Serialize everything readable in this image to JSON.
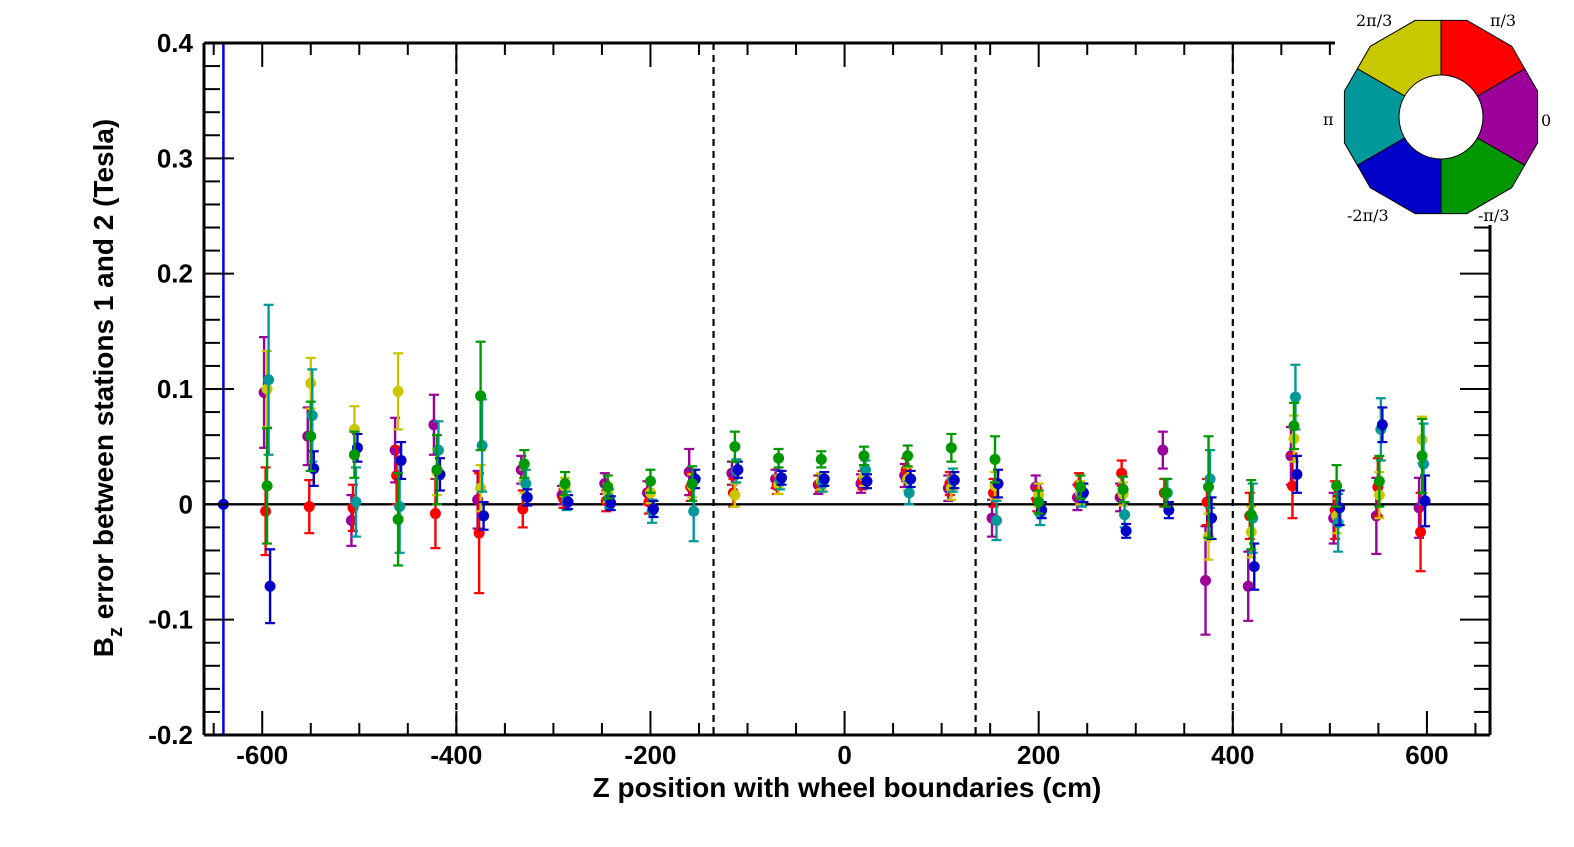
{
  "chart_data": {
    "type": "scatter",
    "xlabel": "Z position with wheel boundaries (cm)",
    "ylabel_main": "B",
    "ylabel_sub": "z",
    "ylabel_rest": " error between stations 1 and 2 (Tesla)",
    "xlim": [
      -660,
      665
    ],
    "ylim": [
      -0.2,
      0.4
    ],
    "x_ticks": [
      -600,
      -400,
      -200,
      0,
      200,
      400,
      600
    ],
    "x_tick_labels": [
      "-600",
      "-400",
      "-200",
      "0",
      "200",
      "400",
      "600"
    ],
    "y_ticks": [
      -0.2,
      -0.1,
      0,
      0.1,
      0.2,
      0.3,
      0.4
    ],
    "y_tick_labels": [
      "-0.2",
      "-0.1",
      "0",
      "0.1",
      "0.2",
      "0.3",
      "0.4"
    ],
    "wheel_boundaries": [
      -400,
      -135,
      135,
      400
    ],
    "vertical_line_x": -640,
    "reference_point": {
      "x": -640,
      "y": 0
    },
    "zero_line": 0,
    "x": [
      -595,
      -550,
      -505,
      -460,
      -420,
      -375,
      -330,
      -288,
      -244,
      -200,
      -157,
      -113,
      -68,
      -24,
      20,
      65,
      110,
      155,
      200,
      243,
      287,
      331,
      375,
      419,
      463,
      507,
      551,
      595
    ],
    "series": [
      {
        "name": "0",
        "color": "#9b009b",
        "values": [
          0.097,
          0.059,
          -0.014,
          0.047,
          0.069,
          0.004,
          0.03,
          0.008,
          0.018,
          0.01,
          0.028,
          0.027,
          0.022,
          0.017,
          0.018,
          0.025,
          0.014,
          -0.012,
          0.015,
          0.006,
          0.006,
          0.047,
          -0.066,
          -0.071,
          0.042,
          -0.012,
          -0.01,
          -0.003
        ],
        "errors": [
          0.048,
          0.025,
          0.022,
          0.028,
          0.026,
          0.025,
          0.012,
          0.008,
          0.009,
          0.01,
          0.02,
          0.01,
          0.008,
          0.008,
          0.008,
          0.01,
          0.011,
          0.016,
          0.01,
          0.011,
          0.012,
          0.016,
          0.047,
          0.03,
          0.025,
          0.022,
          0.033,
          0.026
        ]
      },
      {
        "name": "π/3",
        "color": "#ff0000",
        "values": [
          -0.006,
          -0.002,
          -0.003,
          0.025,
          -0.008,
          -0.025,
          -0.004,
          0.005,
          0.003,
          0.002,
          0.015,
          0.01,
          0.016,
          0.018,
          0.021,
          0.03,
          0.018,
          0.01,
          0.004,
          0.017,
          0.027,
          0.01,
          0.002,
          -0.01,
          0.016,
          -0.005,
          0.015,
          -0.024
        ],
        "errors": [
          0.038,
          0.023,
          0.02,
          0.025,
          0.03,
          0.052,
          0.016,
          0.008,
          0.009,
          0.01,
          0.012,
          0.012,
          0.007,
          0.007,
          0.008,
          0.01,
          0.01,
          0.012,
          0.01,
          0.01,
          0.011,
          0.012,
          0.02,
          0.02,
          0.028,
          0.025,
          0.025,
          0.034
        ]
      },
      {
        "name": "2π/3",
        "color": "#c8c800",
        "values": [
          0.1,
          0.105,
          0.065,
          0.098,
          0.028,
          0.014,
          0.02,
          0.015,
          0.01,
          0.01,
          0.016,
          0.008,
          0.017,
          0.02,
          0.024,
          0.022,
          0.014,
          0.016,
          0.008,
          0.01,
          0.009,
          0.01,
          -0.028,
          -0.024,
          0.057,
          -0.01,
          0.008,
          0.056
        ],
        "errors": [
          0.033,
          0.022,
          0.02,
          0.033,
          0.02,
          0.02,
          0.01,
          0.008,
          0.008,
          0.009,
          0.01,
          0.01,
          0.008,
          0.007,
          0.008,
          0.01,
          0.01,
          0.012,
          0.01,
          0.01,
          0.01,
          0.012,
          0.02,
          0.022,
          0.02,
          0.015,
          0.02,
          0.02
        ]
      },
      {
        "name": "π",
        "color": "#009898",
        "values": [
          0.108,
          0.077,
          0.002,
          -0.002,
          0.047,
          0.051,
          0.018,
          0.003,
          0.005,
          -0.006,
          -0.006,
          0.029,
          0.021,
          0.018,
          0.03,
          0.01,
          0.021,
          -0.014,
          -0.008,
          0.008,
          -0.009,
          0.01,
          0.022,
          -0.012,
          0.093,
          -0.016,
          0.065,
          0.035
        ],
        "errors": [
          0.065,
          0.04,
          0.03,
          0.04,
          0.025,
          0.04,
          0.012,
          0.008,
          0.008,
          0.01,
          0.026,
          0.01,
          0.008,
          0.007,
          0.008,
          0.01,
          0.01,
          0.017,
          0.01,
          0.01,
          0.011,
          0.012,
          0.025,
          0.03,
          0.028,
          0.025,
          0.027,
          0.035
        ]
      },
      {
        "name": "-2π/3",
        "color": "#0000c8",
        "values": [
          -0.071,
          0.031,
          0.049,
          0.038,
          0.026,
          -0.01,
          0.006,
          0.002,
          0.001,
          -0.004,
          0.022,
          0.03,
          0.023,
          0.022,
          0.02,
          0.022,
          0.021,
          0.018,
          -0.005,
          0.01,
          -0.023,
          -0.005,
          -0.012,
          -0.054,
          0.026,
          -0.003,
          0.069,
          0.003
        ],
        "errors": [
          0.032,
          0.015,
          0.012,
          0.016,
          0.014,
          0.012,
          0.007,
          0.006,
          0.006,
          0.007,
          0.008,
          0.007,
          0.006,
          0.006,
          0.006,
          0.007,
          0.007,
          0.012,
          0.007,
          0.008,
          0.006,
          0.007,
          0.018,
          0.02,
          0.016,
          0.015,
          0.015,
          0.022
        ]
      },
      {
        "name": "-π/3",
        "color": "#009800",
        "values": [
          0.016,
          0.059,
          0.043,
          -0.013,
          0.03,
          0.094,
          0.035,
          0.018,
          0.015,
          0.02,
          0.018,
          0.05,
          0.04,
          0.039,
          0.042,
          0.042,
          0.049,
          0.039,
          0.002,
          0.015,
          0.013,
          0.01,
          0.015,
          -0.009,
          0.068,
          0.016,
          0.02,
          0.042
        ],
        "errors": [
          0.05,
          0.03,
          0.02,
          0.04,
          0.03,
          0.047,
          0.012,
          0.01,
          0.01,
          0.01,
          0.015,
          0.013,
          0.008,
          0.007,
          0.008,
          0.009,
          0.012,
          0.02,
          0.01,
          0.01,
          0.011,
          0.012,
          0.044,
          0.03,
          0.02,
          0.018,
          0.022,
          0.032
        ]
      }
    ],
    "wheel_sectors": [
      {
        "name": "0",
        "color": "#9b009b"
      },
      {
        "name": "π/3",
        "color": "#ff0000"
      },
      {
        "name": "2π/3",
        "color": "#c8c800"
      },
      {
        "name": "π",
        "color": "#009898"
      },
      {
        "name": "-2π/3",
        "color": "#0000c8"
      },
      {
        "name": "-π/3",
        "color": "#009800"
      }
    ],
    "wheel_labels": [
      "0",
      "π/3",
      "2π/3",
      "π",
      "-2π/3",
      "-π/3"
    ],
    "grid": false,
    "legend_placement": "top-right"
  }
}
